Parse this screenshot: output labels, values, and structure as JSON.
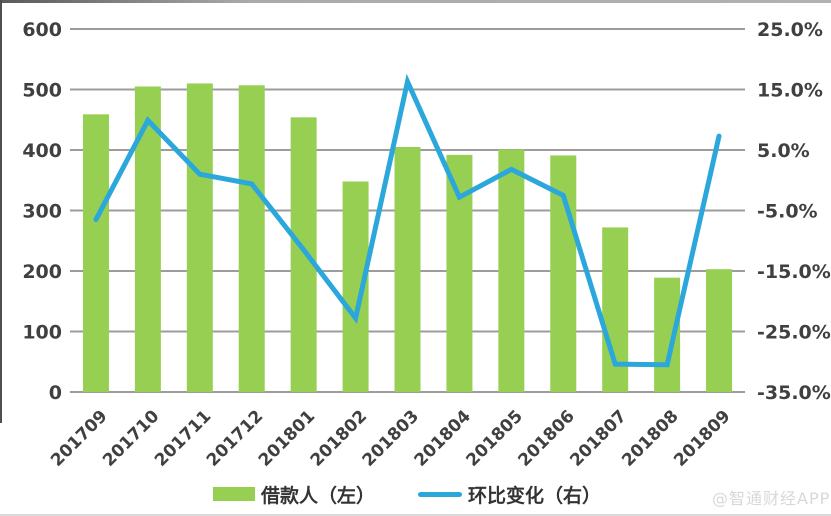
{
  "watermark": "@智通财经APP",
  "colors": {
    "bar": "#97cf52",
    "line": "#2ba7dc",
    "grid": "#9c9c9c",
    "axis_text": "#404040",
    "legend_text": "#333333",
    "watermark_text": "#d8d8d8"
  },
  "chart_data": {
    "type": "bar",
    "subtype": "combo-bar-line",
    "title": "",
    "xlabel": "",
    "ylabel_left": "",
    "ylabel_right": "",
    "grid": true,
    "legend_position": "bottom",
    "categories": [
      "201709",
      "201710",
      "201711",
      "201712",
      "201801",
      "201802",
      "201803",
      "201804",
      "201805",
      "201806",
      "201807",
      "201808",
      "201809"
    ],
    "series": [
      {
        "name": "借款人（左）",
        "type": "bar",
        "axis": "left",
        "color": "#97cf52",
        "values": [
          459,
          505,
          510,
          507,
          454,
          348,
          405,
          392,
          401,
          391,
          272,
          189,
          203
        ]
      },
      {
        "name": "环比变化（右）",
        "type": "line",
        "axis": "right",
        "color": "#2ba7dc",
        "values": [
          -6.5,
          9.9,
          1.0,
          -0.6,
          -11.5,
          -22.8,
          16.3,
          -2.8,
          1.8,
          -2.5,
          -30.4,
          -30.5,
          7.3
        ]
      }
    ],
    "left_axis": {
      "min": 0,
      "max": 600,
      "step": 100,
      "tick_labels": [
        "600",
        "500",
        "400",
        "300",
        "200",
        "100",
        "0"
      ],
      "tick_values": [
        600,
        500,
        400,
        300,
        200,
        100,
        0
      ]
    },
    "right_axis": {
      "min": -35,
      "max": 25,
      "step": 10,
      "tick_labels": [
        "25.0%",
        "15.0%",
        "5.0%",
        "-5.0%",
        "-15.0%",
        "-25.0%",
        "-35.0%"
      ],
      "tick_values": [
        25,
        15,
        5,
        -5,
        -15,
        -25,
        -35
      ]
    }
  }
}
